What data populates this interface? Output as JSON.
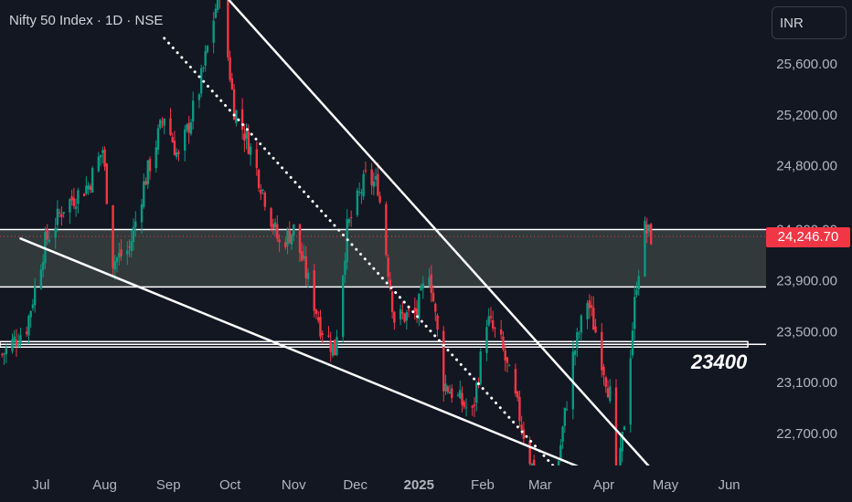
{
  "header": {
    "title": "Nifty 50 Index · 1D · NSE"
  },
  "currency_button": {
    "label": "INR"
  },
  "last_price": {
    "label": "24,246.70",
    "value": 24246.7
  },
  "level_label": {
    "text": "23400",
    "value": 23400
  },
  "colors": {
    "background": "#131722",
    "up": "#089981",
    "down": "#f23645",
    "trendline": "#ffffff",
    "zone": "#4a5550",
    "axis_text": "#b2b5be"
  },
  "chart_data": {
    "type": "candlestick",
    "title": "Nifty 50 Index · 1D · NSE",
    "x_ticks": [
      "Jul",
      "Aug",
      "Sep",
      "Oct",
      "Nov",
      "Dec",
      "2025",
      "Feb",
      "Mar",
      "Apr",
      "May",
      "Jun"
    ],
    "x_tick_dates": [
      "2024-07-01",
      "2024-08-01",
      "2024-09-01",
      "2024-10-01",
      "2024-11-01",
      "2024-12-01",
      "2025-01-01",
      "2025-02-01",
      "2025-03-01",
      "2025-04-01",
      "2025-05-01",
      "2025-06-01"
    ],
    "y_ticks": [
      22700,
      23100,
      23500,
      23900,
      24300,
      24800,
      25200,
      25600
    ],
    "y_tick_labels": [
      "22,700.00",
      "23,100.00",
      "23,500.00",
      "23,900.00",
      "24,300.00",
      "24,800.00",
      "25,200.00",
      "25,600.00"
    ],
    "ylim": [
      22450,
      26100
    ],
    "xlim": [
      "2024-06-11",
      "2025-06-19"
    ],
    "series_path": [
      [
        "2024-06-12",
        23320
      ],
      [
        "2024-06-24",
        23540
      ],
      [
        "2024-07-03",
        24200
      ],
      [
        "2024-07-12",
        24480
      ],
      [
        "2024-07-24",
        24650
      ],
      [
        "2024-07-31",
        24930
      ],
      [
        "2024-08-05",
        24050
      ],
      [
        "2024-08-13",
        24150
      ],
      [
        "2024-08-20",
        24650
      ],
      [
        "2024-08-30",
        25200
      ],
      [
        "2024-09-06",
        24850
      ],
      [
        "2024-09-16",
        25400
      ],
      [
        "2024-09-26",
        26200
      ],
      [
        "2024-10-03",
        25250
      ],
      [
        "2024-10-10",
        24980
      ],
      [
        "2024-10-25",
        24180
      ],
      [
        "2024-11-01",
        24300
      ],
      [
        "2024-11-14",
        23550
      ],
      [
        "2024-11-21",
        23350
      ],
      [
        "2024-11-27",
        24300
      ],
      [
        "2024-12-06",
        24700
      ],
      [
        "2024-12-12",
        24650
      ],
      [
        "2024-12-20",
        23600
      ],
      [
        "2024-12-31",
        23650
      ],
      [
        "2025-01-06",
        24000
      ],
      [
        "2025-01-13",
        23100
      ],
      [
        "2025-01-27",
        22850
      ],
      [
        "2025-02-03",
        23600
      ],
      [
        "2025-02-10",
        23400
      ],
      [
        "2025-02-18",
        22900
      ],
      [
        "2025-02-28",
        22250
      ],
      [
        "2025-03-04",
        22150
      ],
      [
        "2025-03-10",
        22500
      ],
      [
        "2025-03-17",
        23300
      ],
      [
        "2025-03-24",
        23750
      ],
      [
        "2025-03-28",
        23500
      ],
      [
        "2025-04-04",
        23000
      ],
      [
        "2025-04-07",
        22200
      ],
      [
        "2025-04-11",
        22800
      ],
      [
        "2025-04-17",
        23900
      ],
      [
        "2025-04-21",
        24300
      ],
      [
        "2025-04-24",
        24246.7
      ]
    ],
    "horizontal_levels": [
      24300,
      23850,
      23400
    ],
    "zone": [
      23850,
      24300
    ],
    "trendlines": [
      {
        "style": "solid",
        "points": [
          [
            "2024-09-26",
            26180
          ],
          [
            "2025-05-01",
            22300
          ]
        ]
      },
      {
        "style": "solid",
        "points": [
          [
            "2024-06-21",
            24230
          ],
          [
            "2025-04-10",
            22300
          ]
        ]
      },
      {
        "style": "dotted",
        "points": [
          [
            "2024-08-30",
            25800
          ],
          [
            "2025-03-10",
            22400
          ]
        ]
      }
    ],
    "last_value": 24246.7,
    "grid": false,
    "legend": "none"
  }
}
